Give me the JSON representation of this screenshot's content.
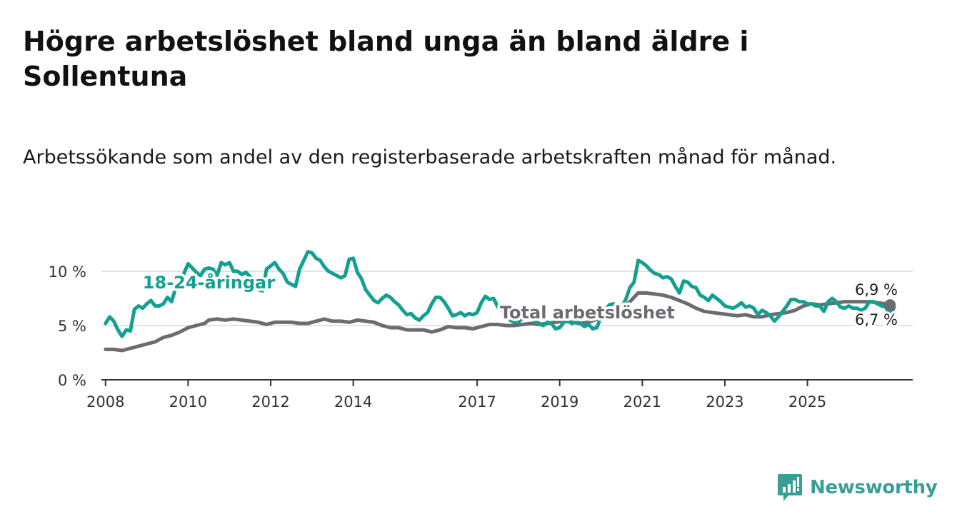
{
  "title": "Högre arbetslöshet bland unga än bland äldre i Sollentuna",
  "subtitle": "Arbetssökande som andel av den registerbaserade arbetskraften månad för månad.",
  "brand": {
    "name": "Newsworthy",
    "icon": "chart-bars-icon",
    "color": "#3a9e97"
  },
  "colors": {
    "youth": "#14a091",
    "total": "#6c6b72",
    "grid": "#d9d9d9",
    "axis": "#333333"
  },
  "chart_data": {
    "type": "line",
    "title": "Högre arbetslöshet bland unga än bland äldre i Sollentuna",
    "xlabel": "",
    "ylabel": "",
    "xlim": [
      2007.9,
      2027.55
    ],
    "ylim": [
      0,
      10
    ],
    "yticks": [
      {
        "value": 0,
        "label": "0 %"
      },
      {
        "value": 5,
        "label": "5 %"
      },
      {
        "value": 10,
        "label": "10 %"
      }
    ],
    "xticks": [
      {
        "value": 2008,
        "label": "2008"
      },
      {
        "value": 2010,
        "label": "2010"
      },
      {
        "value": 2012,
        "label": "2012"
      },
      {
        "value": 2014,
        "label": "2014"
      },
      {
        "value": 2017,
        "label": "2017"
      },
      {
        "value": 2019,
        "label": "2019"
      },
      {
        "value": 2021,
        "label": "2021"
      },
      {
        "value": 2023,
        "label": "2023"
      },
      {
        "value": 2025,
        "label": "2025"
      }
    ],
    "series": [
      {
        "name": "18-24-åringar",
        "key": "youth",
        "label_pos": [
          2008.9,
          9.0
        ],
        "end_label": "6,7 %",
        "points": [
          [
            2008.0,
            5.2
          ],
          [
            2008.1,
            5.8
          ],
          [
            2008.2,
            5.4
          ],
          [
            2008.3,
            4.6
          ],
          [
            2008.4,
            4.0
          ],
          [
            2008.5,
            4.6
          ],
          [
            2008.6,
            4.5
          ],
          [
            2008.7,
            6.5
          ],
          [
            2008.8,
            6.8
          ],
          [
            2008.9,
            6.6
          ],
          [
            2009.0,
            7.0
          ],
          [
            2009.1,
            7.3
          ],
          [
            2009.2,
            6.8
          ],
          [
            2009.3,
            6.8
          ],
          [
            2009.4,
            7.0
          ],
          [
            2009.5,
            7.6
          ],
          [
            2009.6,
            7.2
          ],
          [
            2009.7,
            8.5
          ],
          [
            2009.8,
            9.0
          ],
          [
            2009.9,
            9.8
          ],
          [
            2010.0,
            10.7
          ],
          [
            2010.1,
            10.3
          ],
          [
            2010.2,
            9.9
          ],
          [
            2010.3,
            9.6
          ],
          [
            2010.4,
            10.2
          ],
          [
            2010.5,
            10.3
          ],
          [
            2010.6,
            10.2
          ],
          [
            2010.7,
            9.6
          ],
          [
            2010.8,
            10.8
          ],
          [
            2010.9,
            10.6
          ],
          [
            2011.0,
            10.8
          ],
          [
            2011.1,
            10.0
          ],
          [
            2011.2,
            10.0
          ],
          [
            2011.3,
            9.7
          ],
          [
            2011.4,
            9.9
          ],
          [
            2011.5,
            9.5
          ],
          [
            2011.6,
            9.2
          ],
          [
            2011.7,
            8.3
          ],
          [
            2011.8,
            8.2
          ],
          [
            2011.9,
            10.2
          ],
          [
            2012.0,
            10.5
          ],
          [
            2012.1,
            10.8
          ],
          [
            2012.2,
            10.2
          ],
          [
            2012.3,
            9.8
          ],
          [
            2012.4,
            9.0
          ],
          [
            2012.5,
            8.8
          ],
          [
            2012.6,
            8.6
          ],
          [
            2012.7,
            10.2
          ],
          [
            2012.8,
            11.0
          ],
          [
            2012.9,
            11.8
          ],
          [
            2013.0,
            11.7
          ],
          [
            2013.1,
            11.2
          ],
          [
            2013.2,
            11.0
          ],
          [
            2013.3,
            10.4
          ],
          [
            2013.4,
            10.0
          ],
          [
            2013.5,
            9.8
          ],
          [
            2013.6,
            9.6
          ],
          [
            2013.7,
            9.4
          ],
          [
            2013.8,
            9.6
          ],
          [
            2013.9,
            11.1
          ],
          [
            2014.0,
            11.2
          ],
          [
            2014.1,
            9.9
          ],
          [
            2014.2,
            9.3
          ],
          [
            2014.3,
            8.3
          ],
          [
            2014.4,
            7.8
          ],
          [
            2014.5,
            7.3
          ],
          [
            2014.6,
            7.1
          ],
          [
            2014.7,
            7.5
          ],
          [
            2014.8,
            7.8
          ],
          [
            2014.9,
            7.6
          ],
          [
            2015.0,
            7.2
          ],
          [
            2015.1,
            6.9
          ],
          [
            2015.2,
            6.4
          ],
          [
            2015.3,
            6.0
          ],
          [
            2015.4,
            6.1
          ],
          [
            2015.5,
            5.7
          ],
          [
            2015.6,
            5.5
          ],
          [
            2015.7,
            5.9
          ],
          [
            2015.8,
            6.2
          ],
          [
            2015.9,
            7.0
          ],
          [
            2016.0,
            7.6
          ],
          [
            2016.1,
            7.6
          ],
          [
            2016.2,
            7.2
          ],
          [
            2016.3,
            6.6
          ],
          [
            2016.4,
            5.9
          ],
          [
            2016.5,
            6.0
          ],
          [
            2016.6,
            6.2
          ],
          [
            2016.7,
            5.9
          ],
          [
            2016.8,
            6.1
          ],
          [
            2016.9,
            6.0
          ],
          [
            2017.0,
            6.2
          ],
          [
            2017.1,
            7.1
          ],
          [
            2017.2,
            7.7
          ],
          [
            2017.3,
            7.4
          ],
          [
            2017.4,
            7.5
          ],
          [
            2017.5,
            6.7
          ],
          [
            2017.6,
            6.5
          ],
          [
            2017.7,
            5.7
          ],
          [
            2017.8,
            5.5
          ],
          [
            2017.9,
            5.3
          ],
          [
            2018.0,
            5.3
          ],
          [
            2018.1,
            5.7
          ],
          [
            2018.2,
            6.2
          ],
          [
            2018.3,
            5.8
          ],
          [
            2018.4,
            5.4
          ],
          [
            2018.5,
            5.2
          ],
          [
            2018.6,
            5.0
          ],
          [
            2018.7,
            5.3
          ],
          [
            2018.8,
            5.2
          ],
          [
            2018.9,
            4.7
          ],
          [
            2019.0,
            4.8
          ],
          [
            2019.1,
            5.3
          ],
          [
            2019.2,
            5.4
          ],
          [
            2019.3,
            5.2
          ],
          [
            2019.4,
            5.4
          ],
          [
            2019.5,
            5.2
          ],
          [
            2019.6,
            4.9
          ],
          [
            2019.7,
            5.1
          ],
          [
            2019.8,
            4.7
          ],
          [
            2019.9,
            4.8
          ],
          [
            2020.0,
            5.8
          ],
          [
            2020.1,
            6.4
          ],
          [
            2020.2,
            6.9
          ],
          [
            2020.3,
            7.0
          ],
          [
            2020.4,
            6.8
          ],
          [
            2020.5,
            6.7
          ],
          [
            2020.6,
            7.4
          ],
          [
            2020.7,
            8.5
          ],
          [
            2020.8,
            9.0
          ],
          [
            2020.9,
            11.0
          ],
          [
            2021.0,
            10.8
          ],
          [
            2021.1,
            10.5
          ],
          [
            2021.2,
            10.1
          ],
          [
            2021.3,
            9.8
          ],
          [
            2021.4,
            9.7
          ],
          [
            2021.5,
            9.4
          ],
          [
            2021.6,
            9.5
          ],
          [
            2021.7,
            9.3
          ],
          [
            2021.8,
            8.6
          ],
          [
            2021.9,
            8.0
          ],
          [
            2022.0,
            9.1
          ],
          [
            2022.1,
            9.0
          ],
          [
            2022.2,
            8.6
          ],
          [
            2022.3,
            8.5
          ],
          [
            2022.4,
            7.8
          ],
          [
            2022.5,
            7.6
          ],
          [
            2022.6,
            7.3
          ],
          [
            2022.7,
            7.8
          ],
          [
            2022.8,
            7.5
          ],
          [
            2022.9,
            7.2
          ],
          [
            2023.0,
            6.8
          ],
          [
            2023.1,
            6.7
          ],
          [
            2023.2,
            6.6
          ],
          [
            2023.3,
            6.8
          ],
          [
            2023.4,
            7.1
          ],
          [
            2023.5,
            6.7
          ],
          [
            2023.6,
            6.8
          ],
          [
            2023.7,
            6.6
          ],
          [
            2023.8,
            6.0
          ],
          [
            2023.9,
            6.4
          ],
          [
            2024.0,
            6.2
          ],
          [
            2024.1,
            5.9
          ],
          [
            2024.2,
            5.4
          ],
          [
            2024.3,
            5.8
          ],
          [
            2024.4,
            6.3
          ],
          [
            2024.5,
            6.8
          ],
          [
            2024.6,
            7.4
          ],
          [
            2024.7,
            7.4
          ],
          [
            2024.8,
            7.2
          ],
          [
            2024.9,
            7.2
          ],
          [
            2025.0,
            7.0
          ],
          [
            2025.1,
            7.0
          ],
          [
            2025.2,
            6.8
          ],
          [
            2025.3,
            6.8
          ],
          [
            2025.4,
            6.3
          ],
          [
            2025.5,
            7.2
          ],
          [
            2025.6,
            7.5
          ],
          [
            2025.7,
            7.2
          ],
          [
            2025.8,
            6.7
          ],
          [
            2025.9,
            6.6
          ],
          [
            2026.0,
            6.8
          ],
          [
            2026.1,
            6.6
          ],
          [
            2026.2,
            6.6
          ],
          [
            2026.3,
            6.4
          ],
          [
            2026.4,
            6.6
          ],
          [
            2026.5,
            7.2
          ],
          [
            2026.6,
            7.2
          ],
          [
            2026.7,
            7.0
          ],
          [
            2026.8,
            6.8
          ],
          [
            2026.9,
            6.7
          ],
          [
            2027.0,
            6.7
          ]
        ]
      },
      {
        "name": "Total arbetslöshet",
        "key": "total",
        "label_pos": [
          2017.55,
          6.25
        ],
        "end_label": "6,9 %",
        "points": [
          [
            2008.0,
            2.8
          ],
          [
            2008.2,
            2.8
          ],
          [
            2008.4,
            2.7
          ],
          [
            2008.6,
            2.9
          ],
          [
            2008.8,
            3.1
          ],
          [
            2009.0,
            3.3
          ],
          [
            2009.2,
            3.5
          ],
          [
            2009.4,
            3.9
          ],
          [
            2009.6,
            4.1
          ],
          [
            2009.8,
            4.4
          ],
          [
            2010.0,
            4.8
          ],
          [
            2010.2,
            5.0
          ],
          [
            2010.4,
            5.2
          ],
          [
            2010.5,
            5.5
          ],
          [
            2010.7,
            5.6
          ],
          [
            2010.9,
            5.5
          ],
          [
            2011.1,
            5.6
          ],
          [
            2011.3,
            5.5
          ],
          [
            2011.5,
            5.4
          ],
          [
            2011.7,
            5.3
          ],
          [
            2011.9,
            5.1
          ],
          [
            2012.1,
            5.3
          ],
          [
            2012.3,
            5.3
          ],
          [
            2012.5,
            5.3
          ],
          [
            2012.7,
            5.2
          ],
          [
            2012.9,
            5.2
          ],
          [
            2013.1,
            5.4
          ],
          [
            2013.3,
            5.6
          ],
          [
            2013.5,
            5.4
          ],
          [
            2013.7,
            5.4
          ],
          [
            2013.9,
            5.3
          ],
          [
            2014.1,
            5.5
          ],
          [
            2014.3,
            5.4
          ],
          [
            2014.5,
            5.3
          ],
          [
            2014.7,
            5.0
          ],
          [
            2014.9,
            4.8
          ],
          [
            2015.1,
            4.8
          ],
          [
            2015.3,
            4.6
          ],
          [
            2015.5,
            4.6
          ],
          [
            2015.7,
            4.6
          ],
          [
            2015.9,
            4.4
          ],
          [
            2016.1,
            4.6
          ],
          [
            2016.3,
            4.9
          ],
          [
            2016.5,
            4.8
          ],
          [
            2016.7,
            4.8
          ],
          [
            2016.9,
            4.7
          ],
          [
            2017.1,
            4.9
          ],
          [
            2017.3,
            5.1
          ],
          [
            2017.5,
            5.1
          ],
          [
            2017.7,
            5.0
          ],
          [
            2017.9,
            5.0
          ],
          [
            2018.1,
            5.1
          ],
          [
            2018.3,
            5.2
          ],
          [
            2018.5,
            5.1
          ],
          [
            2018.7,
            5.2
          ],
          [
            2018.9,
            5.3
          ],
          [
            2019.1,
            5.4
          ],
          [
            2019.3,
            5.3
          ],
          [
            2019.5,
            5.2
          ],
          [
            2019.7,
            5.3
          ],
          [
            2019.9,
            5.6
          ],
          [
            2020.1,
            5.9
          ],
          [
            2020.3,
            6.2
          ],
          [
            2020.5,
            6.6
          ],
          [
            2020.7,
            7.2
          ],
          [
            2020.9,
            8.0
          ],
          [
            2021.1,
            8.0
          ],
          [
            2021.3,
            7.9
          ],
          [
            2021.5,
            7.8
          ],
          [
            2021.7,
            7.6
          ],
          [
            2021.9,
            7.3
          ],
          [
            2022.1,
            7.0
          ],
          [
            2022.3,
            6.6
          ],
          [
            2022.5,
            6.3
          ],
          [
            2022.7,
            6.2
          ],
          [
            2022.9,
            6.1
          ],
          [
            2023.1,
            6.0
          ],
          [
            2023.3,
            5.9
          ],
          [
            2023.5,
            6.0
          ],
          [
            2023.7,
            5.8
          ],
          [
            2023.9,
            5.8
          ],
          [
            2024.1,
            6.0
          ],
          [
            2024.3,
            6.1
          ],
          [
            2024.5,
            6.2
          ],
          [
            2024.7,
            6.4
          ],
          [
            2024.9,
            6.8
          ],
          [
            2025.1,
            7.0
          ],
          [
            2025.3,
            6.9
          ],
          [
            2025.5,
            7.0
          ],
          [
            2025.7,
            7.1
          ],
          [
            2025.9,
            7.2
          ],
          [
            2026.1,
            7.2
          ],
          [
            2026.3,
            7.2
          ],
          [
            2026.5,
            7.2
          ],
          [
            2026.7,
            7.1
          ],
          [
            2026.9,
            7.0
          ],
          [
            2027.0,
            6.9
          ]
        ]
      }
    ]
  }
}
